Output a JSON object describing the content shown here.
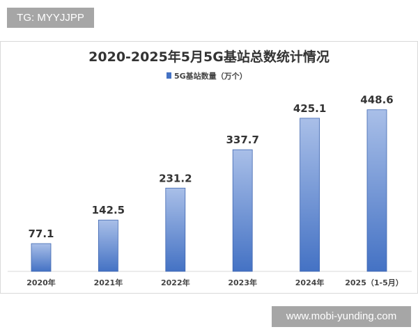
{
  "watermarks": {
    "top_left": "TG: MYYJJPP",
    "bottom_right": "www.mobi-yunding.com"
  },
  "chart_data": {
    "type": "bar",
    "title": "2020-2025年5月5G基站总数统计情况",
    "legend": {
      "position": "top",
      "entries": [
        "5G基站数量（万个）"
      ]
    },
    "categories": [
      "2020年",
      "2021年",
      "2022年",
      "2023年",
      "2024年",
      "2025（1-5月）"
    ],
    "series": [
      {
        "name": "5G基站数量（万个）",
        "values": [
          77.1,
          142.5,
          231.2,
          337.7,
          425.1,
          448.6
        ]
      }
    ],
    "data_labels": [
      "77.1",
      "142.5",
      "231.2",
      "337.7",
      "425.1",
      "448.6"
    ],
    "ylim": [
      0,
      450
    ],
    "grid": false,
    "colors": {
      "bar_top": "#a9bfe8",
      "bar_bottom": "#4472c4",
      "bar_border": "#3f66b0"
    }
  }
}
